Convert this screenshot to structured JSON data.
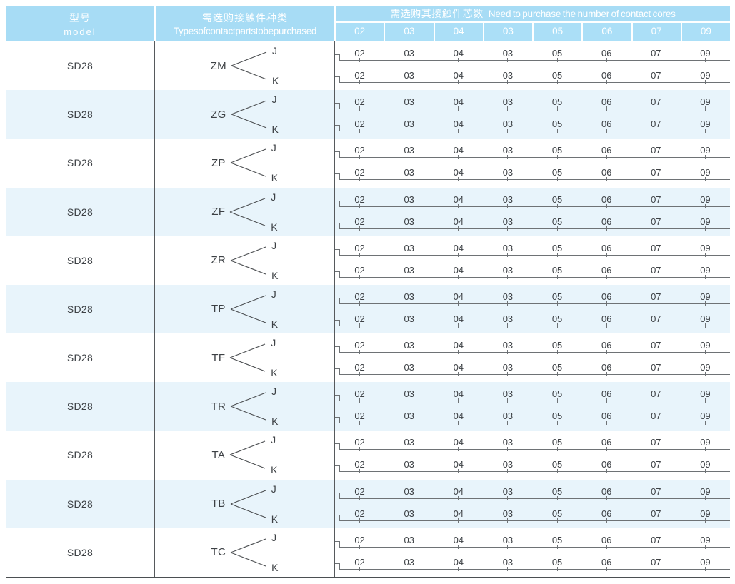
{
  "table": {
    "header": {
      "model": {
        "zh": "型号",
        "en": "model"
      },
      "types": {
        "zh": "需选购接触件种类",
        "en": "Types of contact parts to be purchased"
      },
      "cores": {
        "zh": "需选购其接触件芯数",
        "en": "Need to purchase the number of contact cores"
      },
      "core_columns": [
        "02",
        "03",
        "04",
        "03",
        "05",
        "06",
        "07",
        "09"
      ]
    },
    "rows": [
      {
        "model": "SD28",
        "type": "ZM",
        "branch_j": "J",
        "branch_k": "K",
        "j_values": [
          "02",
          "03",
          "04",
          "03",
          "05",
          "06",
          "07",
          "09"
        ],
        "k_values": [
          "02",
          "03",
          "04",
          "03",
          "05",
          "06",
          "07",
          "09"
        ]
      },
      {
        "model": "SD28",
        "type": "ZG",
        "branch_j": "J",
        "branch_k": "K",
        "j_values": [
          "02",
          "03",
          "04",
          "03",
          "05",
          "06",
          "07",
          "09"
        ],
        "k_values": [
          "02",
          "03",
          "04",
          "03",
          "05",
          "06",
          "07",
          "09"
        ]
      },
      {
        "model": "SD28",
        "type": "ZP",
        "branch_j": "J",
        "branch_k": "K",
        "j_values": [
          "02",
          "03",
          "04",
          "03",
          "05",
          "06",
          "07",
          "09"
        ],
        "k_values": [
          "02",
          "03",
          "04",
          "03",
          "05",
          "06",
          "07",
          "09"
        ]
      },
      {
        "model": "SD28",
        "type": "ZF",
        "branch_j": "J",
        "branch_k": "K",
        "j_values": [
          "02",
          "03",
          "04",
          "03",
          "05",
          "06",
          "07",
          "09"
        ],
        "k_values": [
          "02",
          "03",
          "04",
          "03",
          "05",
          "06",
          "07",
          "09"
        ]
      },
      {
        "model": "SD28",
        "type": "ZR",
        "branch_j": "J",
        "branch_k": "K",
        "j_values": [
          "02",
          "03",
          "04",
          "03",
          "05",
          "06",
          "07",
          "09"
        ],
        "k_values": [
          "02",
          "03",
          "04",
          "03",
          "05",
          "06",
          "07",
          "09"
        ]
      },
      {
        "model": "SD28",
        "type": "TP",
        "branch_j": "J",
        "branch_k": "K",
        "j_values": [
          "02",
          "03",
          "04",
          "03",
          "05",
          "06",
          "07",
          "09"
        ],
        "k_values": [
          "02",
          "03",
          "04",
          "03",
          "05",
          "06",
          "07",
          "09"
        ]
      },
      {
        "model": "SD28",
        "type": "TF",
        "branch_j": "J",
        "branch_k": "K",
        "j_values": [
          "02",
          "03",
          "04",
          "03",
          "05",
          "06",
          "07",
          "09"
        ],
        "k_values": [
          "02",
          "03",
          "04",
          "03",
          "05",
          "06",
          "07",
          "09"
        ]
      },
      {
        "model": "SD28",
        "type": "TR",
        "branch_j": "J",
        "branch_k": "K",
        "j_values": [
          "02",
          "03",
          "04",
          "03",
          "05",
          "06",
          "07",
          "09"
        ],
        "k_values": [
          "02",
          "03",
          "04",
          "03",
          "05",
          "06",
          "07",
          "09"
        ]
      },
      {
        "model": "SD28",
        "type": "TA",
        "branch_j": "J",
        "branch_k": "K",
        "j_values": [
          "02",
          "03",
          "04",
          "03",
          "05",
          "06",
          "07",
          "09"
        ],
        "k_values": [
          "02",
          "03",
          "04",
          "03",
          "05",
          "06",
          "07",
          "09"
        ]
      },
      {
        "model": "SD28",
        "type": "TB",
        "branch_j": "J",
        "branch_k": "K",
        "j_values": [
          "02",
          "03",
          "04",
          "03",
          "05",
          "06",
          "07",
          "09"
        ],
        "k_values": [
          "02",
          "03",
          "04",
          "03",
          "05",
          "06",
          "07",
          "09"
        ]
      },
      {
        "model": "SD28",
        "type": "TC",
        "branch_j": "J",
        "branch_k": "K",
        "j_values": [
          "02",
          "03",
          "04",
          "03",
          "05",
          "06",
          "07",
          "09"
        ],
        "k_values": [
          "02",
          "03",
          "04",
          "03",
          "05",
          "06",
          "07",
          "09"
        ]
      }
    ]
  },
  "colors": {
    "header_bg": "#a7dcf5",
    "subheader_bg": "#abdff7",
    "alt_row_bg": "#e8f4fb",
    "header_text": "#ffffff",
    "body_text": "#3d4145",
    "rule_line": "#6e7275",
    "divider_line": "#56595c",
    "bottom_border": "#4b4f52"
  }
}
